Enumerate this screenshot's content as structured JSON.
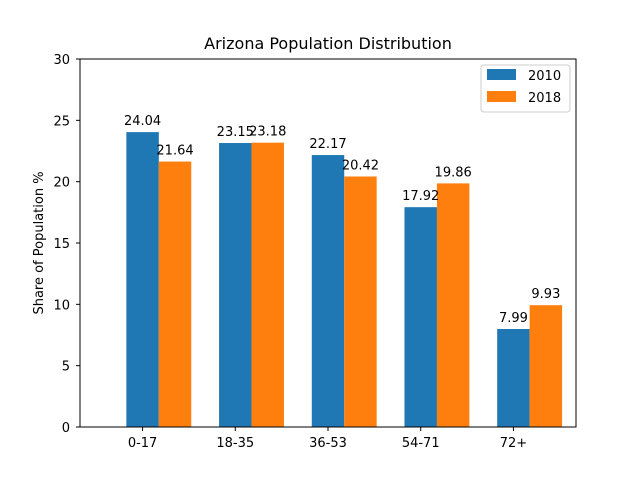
{
  "chart_data": {
    "type": "bar",
    "title": "Arizona Population Distribution",
    "xlabel": "",
    "ylabel": "Share of Population %",
    "categories": [
      "0-17",
      "18-35",
      "36-53",
      "54-71",
      "72+"
    ],
    "series": [
      {
        "name": "2010",
        "values": [
          24.04,
          23.15,
          22.17,
          17.92,
          7.99
        ],
        "color": "#1f77b4"
      },
      {
        "name": "2018",
        "values": [
          21.64,
          23.18,
          20.42,
          19.86,
          9.93
        ],
        "color": "#ff7f0e"
      }
    ],
    "value_labels": [
      [
        "24.04",
        "23.15",
        "22.17",
        "17.92",
        "7.99"
      ],
      [
        "21.64",
        "23.18",
        "20.42",
        "19.86",
        "9.93"
      ]
    ],
    "ylim": [
      0,
      30
    ],
    "yticks": [
      0,
      5,
      10,
      15,
      20,
      25,
      30
    ],
    "ytick_labels": [
      "0",
      "5",
      "10",
      "15",
      "20",
      "25",
      "30"
    ],
    "grid": false,
    "legend_position": "top-right"
  }
}
